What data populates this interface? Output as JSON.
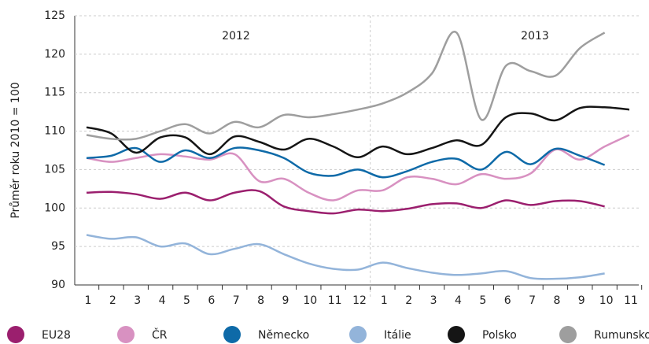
{
  "chart_data": {
    "type": "line",
    "ylabel": "Průměr roku 2010 = 100",
    "annotations": [
      "2012",
      "2013"
    ],
    "categories": [
      "1",
      "2",
      "3",
      "4",
      "5",
      "6",
      "7",
      "8",
      "9",
      "10",
      "11",
      "12",
      "1",
      "2",
      "3",
      "4",
      "5",
      "6",
      "7",
      "8",
      "9",
      "10",
      "11"
    ],
    "ylim": [
      90,
      125
    ],
    "yticks": [
      90,
      95,
      100,
      105,
      110,
      115,
      120,
      125
    ],
    "grid": true,
    "series": [
      {
        "name": "EU28",
        "color": "#9b1f6e",
        "values": [
          102,
          102.1,
          101.8,
          101.2,
          102,
          101,
          102,
          102.2,
          100.2,
          99.6,
          99.3,
          99.8,
          99.6,
          99.9,
          100.5,
          100.6,
          100,
          101,
          100.4,
          100.9,
          100.9,
          100.2,
          null
        ]
      },
      {
        "name": "ČR",
        "color": "#d891c1",
        "values": [
          106.5,
          106,
          106.5,
          107,
          106.7,
          106.3,
          107,
          103.5,
          103.8,
          102,
          101,
          102.3,
          102.3,
          104,
          103.8,
          103.1,
          104.4,
          103.8,
          104.5,
          107.6,
          106.3,
          108,
          109.5
        ]
      },
      {
        "name": "Německo",
        "color": "#0e6aa8",
        "values": [
          106.5,
          106.8,
          107.8,
          106,
          107.5,
          106.5,
          107.8,
          107.5,
          106.5,
          104.6,
          104.2,
          105,
          104,
          104.8,
          106,
          106.4,
          105,
          107.3,
          105.7,
          107.7,
          106.8,
          105.6,
          null
        ]
      },
      {
        "name": "Itálie",
        "color": "#93b4da",
        "values": [
          96.5,
          96,
          96.2,
          95,
          95.4,
          94,
          94.7,
          95.3,
          94,
          92.8,
          92.1,
          92,
          92.9,
          92.2,
          91.6,
          91.3,
          91.5,
          91.8,
          90.9,
          90.8,
          91,
          91.5,
          null
        ]
      },
      {
        "name": "Polsko",
        "color": "#151515",
        "values": [
          110.5,
          109.7,
          107.2,
          109.2,
          109.2,
          107,
          109.3,
          108.6,
          107.6,
          109,
          108,
          106.6,
          108,
          107,
          107.8,
          108.8,
          108.2,
          111.8,
          112.3,
          111.4,
          113,
          113.1,
          112.8
        ]
      },
      {
        "name": "Rumunsko",
        "color": "#9e9e9e",
        "values": [
          109.5,
          109,
          109,
          110,
          110.9,
          109.7,
          111.2,
          110.5,
          112.1,
          111.8,
          112.2,
          112.8,
          113.6,
          115,
          117.5,
          122.8,
          111.5,
          118.5,
          117.8,
          117.2,
          120.8,
          122.8,
          null
        ]
      }
    ]
  }
}
